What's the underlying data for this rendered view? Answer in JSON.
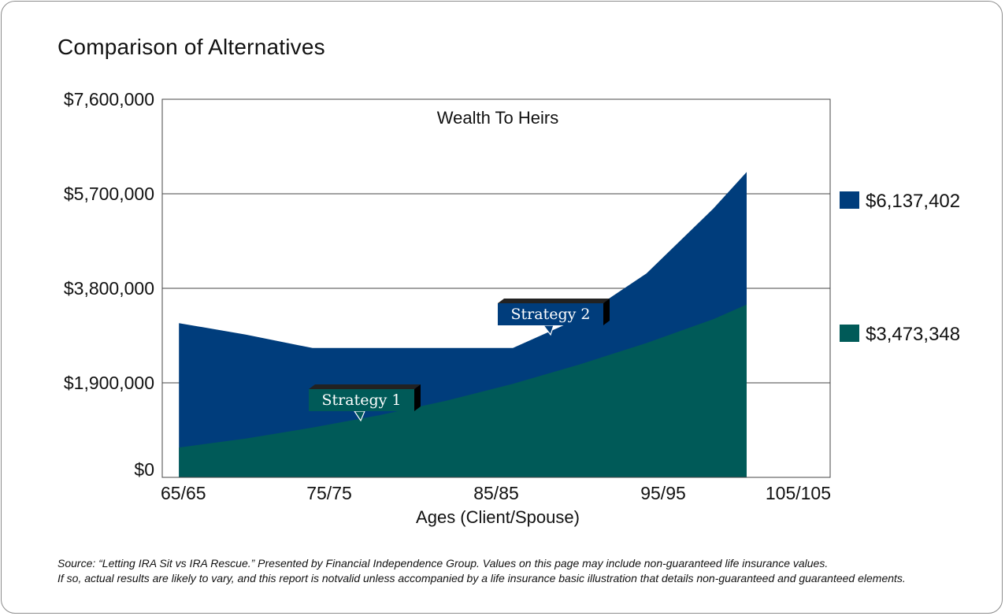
{
  "page": {
    "title": "Comparison of Alternatives",
    "source_line1": "Source: “Letting IRA Sit vs IRA Rescue.” Presented by Financial Independence Group. Values on this page may include non-guaranteed life insurance values.",
    "source_line2": "If so, actual results are likely to vary, and this report is notvalid unless accompanied by a life insurance basic illustration that details non-guaranteed and guaranteed elements."
  },
  "chart_data": {
    "type": "area",
    "title": "Wealth To Heirs",
    "xlabel": "Ages (Client/Spouse)",
    "ylabel": "",
    "x_ticks": [
      "65/65",
      "75/75",
      "85/85",
      "95/95",
      "105/105"
    ],
    "y_ticks": [
      "$0",
      "$1,900,000",
      "$3,800,000",
      "$5,700,000",
      "$7,600,000"
    ],
    "xlim": [
      65,
      105
    ],
    "ylim": [
      0,
      7600000
    ],
    "grid": true,
    "series": [
      {
        "name": "Strategy 2",
        "color": "#003d7c",
        "end_label": "$6,137,402",
        "x": [
          66,
          70,
          74,
          78,
          82,
          86,
          90,
          94,
          98,
          100
        ],
        "y": [
          3100000,
          2870000,
          2600000,
          2600000,
          2600000,
          2600000,
          3200000,
          4100000,
          5400000,
          6137402
        ]
      },
      {
        "name": "Strategy 1",
        "color": "#005a58",
        "end_label": "$3,473,348",
        "x": [
          66,
          70,
          74,
          78,
          82,
          86,
          90,
          94,
          98,
          100
        ],
        "y": [
          600000,
          780000,
          1000000,
          1250000,
          1540000,
          1880000,
          2270000,
          2700000,
          3180000,
          3473348
        ]
      }
    ],
    "callouts": [
      {
        "label": "Strategy 1",
        "series": "Strategy 1"
      },
      {
        "label": "Strategy 2",
        "series": "Strategy 2"
      }
    ]
  }
}
